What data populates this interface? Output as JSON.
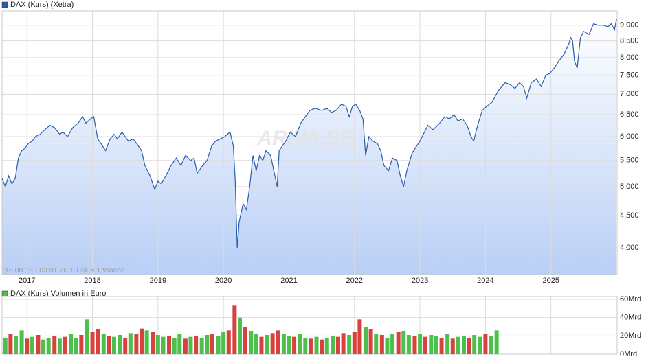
{
  "chart_data": [
    {
      "type": "line",
      "title": "DAX (Kurs) (Xetra)",
      "footnote": "16.08.16 - 03.01.26   1 Tick = 1 Woche",
      "watermark": "ARIVA.DE",
      "color": "#2a5db0",
      "log_scale": true,
      "grid": true,
      "x": [
        2016.62,
        2016.67,
        2016.72,
        2016.77,
        2016.82,
        2016.87,
        2016.92,
        2016.97,
        2017.02,
        2017.08,
        2017.13,
        2017.2,
        2017.27,
        2017.35,
        2017.42,
        2017.5,
        2017.55,
        2017.62,
        2017.7,
        2017.78,
        2017.85,
        2017.9,
        2017.97,
        2018.02,
        2018.08,
        2018.13,
        2018.2,
        2018.27,
        2018.33,
        2018.38,
        2018.45,
        2018.55,
        2018.62,
        2018.7,
        2018.75,
        2018.8,
        2018.88,
        2018.95,
        2019.0,
        2019.05,
        2019.12,
        2019.2,
        2019.28,
        2019.35,
        2019.42,
        2019.5,
        2019.55,
        2019.6,
        2019.68,
        2019.75,
        2019.82,
        2019.88,
        2019.95,
        2020.02,
        2020.1,
        2020.15,
        2020.18,
        2020.21,
        2020.24,
        2020.3,
        2020.35,
        2020.4,
        2020.45,
        2020.5,
        2020.55,
        2020.6,
        2020.65,
        2020.72,
        2020.82,
        2020.85,
        2020.9,
        2020.95,
        2021.02,
        2021.1,
        2021.18,
        2021.25,
        2021.32,
        2021.4,
        2021.5,
        2021.58,
        2021.65,
        2021.72,
        2021.8,
        2021.87,
        2021.92,
        2021.97,
        2022.02,
        2022.08,
        2022.13,
        2022.17,
        2022.22,
        2022.28,
        2022.35,
        2022.4,
        2022.45,
        2022.52,
        2022.58,
        2022.65,
        2022.7,
        2022.75,
        2022.8,
        2022.88,
        2022.95,
        2023.0,
        2023.05,
        2023.12,
        2023.2,
        2023.3,
        2023.38,
        2023.45,
        2023.52,
        2023.58,
        2023.65,
        2023.72,
        2023.78,
        2023.82,
        2023.88,
        2023.95,
        2024.02,
        2024.1,
        2024.2,
        2024.3,
        2024.38,
        2024.45,
        2024.52,
        2024.58,
        2024.63,
        2024.7,
        2024.78,
        2024.85,
        2024.92,
        2024.98,
        2025.05,
        2025.12,
        2025.2,
        2025.27,
        2025.3,
        2025.33,
        2025.36,
        2025.4,
        2025.45,
        2025.5,
        2025.58,
        2025.65,
        2025.72,
        2025.8,
        2025.87,
        2025.92,
        2025.97,
        2026.0
      ],
      "values": [
        5150,
        5000,
        5200,
        5050,
        5150,
        5550,
        5700,
        5750,
        5850,
        5900,
        6000,
        6050,
        6150,
        6250,
        6200,
        6050,
        6100,
        6000,
        6200,
        6300,
        6450,
        6300,
        6400,
        6450,
        5950,
        5850,
        5700,
        5950,
        6050,
        5950,
        6100,
        5900,
        5950,
        5800,
        5700,
        5400,
        5200,
        4950,
        5100,
        5050,
        5200,
        5400,
        5550,
        5400,
        5600,
        5500,
        5550,
        5250,
        5400,
        5500,
        5800,
        5900,
        5950,
        6000,
        6100,
        5800,
        5100,
        4000,
        4400,
        4700,
        4600,
        5000,
        5600,
        5300,
        5600,
        5500,
        5700,
        5600,
        5000,
        5700,
        5800,
        5900,
        6100,
        6000,
        6300,
        6450,
        6600,
        6650,
        6600,
        6650,
        6550,
        6600,
        6750,
        6700,
        6450,
        6700,
        6750,
        6600,
        6400,
        5600,
        6000,
        5900,
        5850,
        5700,
        5400,
        5300,
        5550,
        5500,
        5200,
        5000,
        5300,
        5650,
        5800,
        5900,
        6050,
        6250,
        6150,
        6300,
        6450,
        6400,
        6500,
        6350,
        6400,
        6250,
        6000,
        5900,
        6250,
        6600,
        6700,
        6800,
        7100,
        7300,
        7250,
        7150,
        7300,
        7200,
        6900,
        7300,
        7400,
        7200,
        7500,
        7550,
        7700,
        7900,
        8100,
        8400,
        8600,
        8500,
        7900,
        7700,
        8600,
        8800,
        8700,
        9050,
        9000,
        9000,
        8950,
        9050,
        8850,
        9200
      ],
      "xlim": [
        2016.62,
        2026.01
      ],
      "xticks": [
        2017,
        2018,
        2019,
        2020,
        2021,
        2022,
        2023,
        2024,
        2025
      ],
      "ylim": [
        3630,
        9480
      ],
      "yticks": [
        {
          "value": 4000,
          "label": "4.000"
        },
        {
          "value": 4500,
          "label": "4.500"
        },
        {
          "value": 5000,
          "label": "5.000"
        },
        {
          "value": 5500,
          "label": "5.500"
        },
        {
          "value": 6000,
          "label": "6.000"
        },
        {
          "value": 6500,
          "label": "6.500"
        },
        {
          "value": 7000,
          "label": "7.000"
        },
        {
          "value": 7500,
          "label": "7.500"
        },
        {
          "value": 8000,
          "label": "8.000"
        },
        {
          "value": 8500,
          "label": "8.500"
        },
        {
          "value": 9000,
          "label": "9.000"
        }
      ]
    },
    {
      "type": "bar",
      "title": "DAX (Kurs) Volumen in Euro",
      "color": "#4cbf4c",
      "grid": true,
      "x": [
        2016.67,
        2016.75,
        2016.83,
        2016.92,
        2017.0,
        2017.08,
        2017.17,
        2017.25,
        2017.33,
        2017.42,
        2017.5,
        2017.58,
        2017.67,
        2017.75,
        2017.83,
        2017.92,
        2018.0,
        2018.08,
        2018.17,
        2018.25,
        2018.33,
        2018.42,
        2018.5,
        2018.58,
        2018.67,
        2018.75,
        2018.83,
        2018.92,
        2019.0,
        2019.08,
        2019.17,
        2019.25,
        2019.33,
        2019.42,
        2019.5,
        2019.58,
        2019.67,
        2019.75,
        2019.83,
        2019.92,
        2020.0,
        2020.08,
        2020.17,
        2020.25,
        2020.33,
        2020.42,
        2020.5,
        2020.58,
        2020.67,
        2020.75,
        2020.83,
        2020.92,
        2021.0,
        2021.08,
        2021.17,
        2021.25,
        2021.33,
        2021.42,
        2021.5,
        2021.58,
        2021.67,
        2021.75,
        2021.83,
        2021.92,
        2022.0,
        2022.08,
        2022.17,
        2022.25,
        2022.33,
        2022.42,
        2022.5,
        2022.58,
        2022.67,
        2022.75,
        2022.83,
        2022.92,
        2023.0,
        2023.08,
        2023.17,
        2023.25,
        2023.33,
        2023.42,
        2023.5,
        2023.58,
        2023.67,
        2023.75,
        2023.83,
        2023.92,
        2024.0,
        2024.08,
        2024.17
      ],
      "values": [
        18,
        22,
        20,
        26,
        17,
        19,
        21,
        16,
        18,
        20,
        17,
        19,
        22,
        18,
        21,
        38,
        24,
        27,
        22,
        20,
        19,
        21,
        18,
        23,
        22,
        28,
        26,
        24,
        21,
        19,
        20,
        18,
        22,
        17,
        19,
        20,
        18,
        21,
        22,
        20,
        24,
        26,
        53,
        40,
        30,
        25,
        22,
        19,
        21,
        23,
        26,
        22,
        20,
        19,
        22,
        18,
        17,
        19,
        16,
        18,
        20,
        19,
        23,
        21,
        24,
        38,
        30,
        27,
        22,
        21,
        18,
        22,
        24,
        25,
        21,
        20,
        22,
        19,
        21,
        20,
        18,
        22,
        17,
        19,
        20,
        18,
        21,
        19,
        22,
        20,
        26
      ],
      "bar_colors": [
        "#4cbf4c",
        "#d9413f",
        "#4cbf4c",
        "#4cbf4c",
        "#d9413f",
        "#4cbf4c",
        "#d9413f",
        "#4cbf4c",
        "#4cbf4c",
        "#d9413f",
        "#4cbf4c",
        "#d9413f",
        "#4cbf4c",
        "#4cbf4c",
        "#d9413f",
        "#4cbf4c",
        "#d9413f",
        "#d9413f",
        "#4cbf4c",
        "#d9413f",
        "#4cbf4c",
        "#4cbf4c",
        "#d9413f",
        "#4cbf4c",
        "#d9413f",
        "#d9413f",
        "#4cbf4c",
        "#d9413f",
        "#4cbf4c",
        "#4cbf4c",
        "#d9413f",
        "#4cbf4c",
        "#4cbf4c",
        "#d9413f",
        "#4cbf4c",
        "#d9413f",
        "#4cbf4c",
        "#4cbf4c",
        "#d9413f",
        "#4cbf4c",
        "#4cbf4c",
        "#d9413f",
        "#d9413f",
        "#4cbf4c",
        "#d9413f",
        "#4cbf4c",
        "#4cbf4c",
        "#d9413f",
        "#4cbf4c",
        "#d9413f",
        "#d9413f",
        "#4cbf4c",
        "#4cbf4c",
        "#d9413f",
        "#4cbf4c",
        "#4cbf4c",
        "#d9413f",
        "#4cbf4c",
        "#d9413f",
        "#4cbf4c",
        "#4cbf4c",
        "#d9413f",
        "#d9413f",
        "#4cbf4c",
        "#d9413f",
        "#d9413f",
        "#4cbf4c",
        "#d9413f",
        "#4cbf4c",
        "#d9413f",
        "#4cbf4c",
        "#4cbf4c",
        "#d9413f",
        "#4cbf4c",
        "#4cbf4c",
        "#d9413f",
        "#4cbf4c",
        "#d9413f",
        "#4cbf4c",
        "#4cbf4c",
        "#d9413f",
        "#4cbf4c",
        "#d9413f",
        "#4cbf4c",
        "#4cbf4c",
        "#d9413f",
        "#4cbf4c",
        "#4cbf4c",
        "#d9413f",
        "#4cbf4c",
        "#4cbf4c"
      ],
      "ylim": [
        0,
        63
      ],
      "yticks": [
        {
          "value": 0,
          "label": "0Mrd"
        },
        {
          "value": 20,
          "label": "20Mrd"
        },
        {
          "value": 40,
          "label": "40Mrd"
        },
        {
          "value": 60,
          "label": "60Mrd"
        }
      ]
    }
  ]
}
